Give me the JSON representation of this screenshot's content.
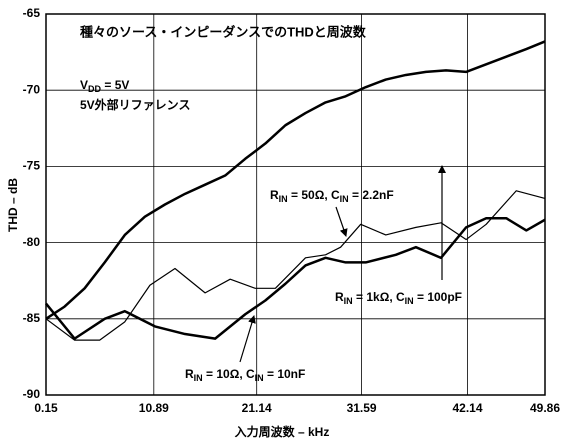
{
  "chart_data": {
    "type": "line",
    "title": "種々のソース・インピーダンスでのTHDと周波数",
    "xlabel": "入力周波数 – kHz",
    "ylabel": "THD – dB",
    "xlim": [
      0.15,
      49.86
    ],
    "xticks": [
      0.15,
      10.89,
      21.14,
      31.59,
      42.14,
      49.86
    ],
    "ylim": [
      -90,
      -65
    ],
    "yticks": [
      -90,
      -85,
      -80,
      -75,
      -70,
      -65
    ],
    "grid": true,
    "color": "#000000",
    "annotations": [
      {
        "parts": [
          "V",
          "DD",
          " = 5V"
        ]
      },
      {
        "parts": [
          "5V外部リファレンス"
        ]
      },
      {
        "parts": [
          "R",
          "IN",
          " = 1kΩ, C",
          "IN",
          " = 100pF"
        ]
      },
      {
        "parts": [
          "R",
          "IN",
          " = 50Ω, C",
          "IN",
          " = 2.2nF"
        ]
      },
      {
        "parts": [
          "R",
          "IN",
          " = 10Ω, C",
          "IN",
          " = 10nF"
        ]
      }
    ],
    "series": [
      {
        "width": 2.5,
        "x": [
          0.15,
          2,
          4,
          6,
          8,
          10,
          12,
          14,
          16,
          18,
          20,
          22,
          24,
          26,
          28,
          30,
          32,
          34,
          36,
          38,
          40,
          42,
          44,
          46,
          48,
          49.86
        ],
        "values": [
          -85.0,
          -84.2,
          -83.0,
          -81.3,
          -79.5,
          -78.3,
          -77.5,
          -76.8,
          -76.2,
          -75.6,
          -74.5,
          -73.5,
          -72.3,
          -71.5,
          -70.8,
          -70.4,
          -69.8,
          -69.3,
          -69.0,
          -68.8,
          -68.7,
          -68.8,
          -68.3,
          -67.8,
          -67.3,
          -66.8
        ]
      },
      {
        "width": 1.2,
        "x": [
          0.15,
          3,
          5.5,
          8,
          10.5,
          13,
          16,
          18.5,
          21,
          23,
          26,
          28,
          29.5,
          31.5,
          34,
          37,
          39.5,
          42,
          44,
          47,
          49.86
        ],
        "values": [
          -85.0,
          -86.4,
          -86.4,
          -85.2,
          -82.8,
          -81.7,
          -83.3,
          -82.4,
          -83.0,
          -83.0,
          -81.0,
          -80.8,
          -80.3,
          -78.8,
          -79.5,
          -79.0,
          -78.7,
          -79.8,
          -78.8,
          -76.6,
          -77.1
        ]
      },
      {
        "width": 2.5,
        "x": [
          0.15,
          3,
          6,
          8,
          11,
          14,
          17,
          20,
          22,
          24,
          26,
          28,
          30,
          32,
          35,
          37,
          39.5,
          42,
          44,
          46,
          48,
          49.86
        ],
        "values": [
          -84.0,
          -86.3,
          -85.0,
          -84.5,
          -85.5,
          -86.0,
          -86.3,
          -84.7,
          -83.8,
          -82.7,
          -81.5,
          -81.0,
          -81.3,
          -81.3,
          -80.8,
          -80.3,
          -81.0,
          -79.0,
          -78.4,
          -78.4,
          -79.2,
          -78.5
        ]
      }
    ]
  }
}
